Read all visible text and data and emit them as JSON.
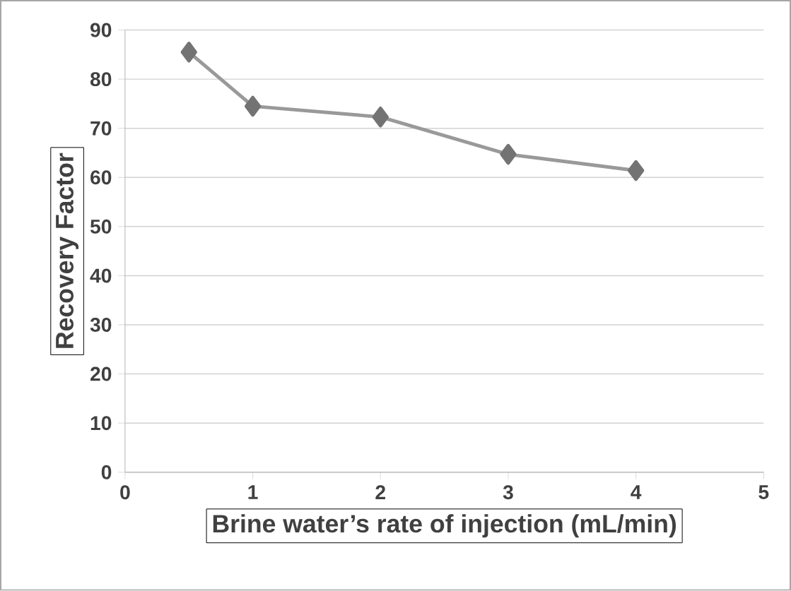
{
  "chart_data": {
    "type": "line",
    "xlabel": "Brine water’s rate of injection (mL/min)",
    "ylabel": "Recovery Factor",
    "x": [
      0.5,
      1,
      2,
      3,
      4
    ],
    "values": [
      85.5,
      74.5,
      72.3,
      64.7,
      61.4
    ],
    "color": "#999999",
    "marker": "diamond",
    "line_style": "solid",
    "grid": "y",
    "xlim": [
      0,
      5
    ],
    "xticks": [
      0,
      1,
      2,
      3,
      4,
      5
    ],
    "ylim": [
      0,
      90
    ],
    "yticks": [
      0,
      10,
      20,
      30,
      40,
      50,
      60,
      70,
      80,
      90
    ]
  }
}
